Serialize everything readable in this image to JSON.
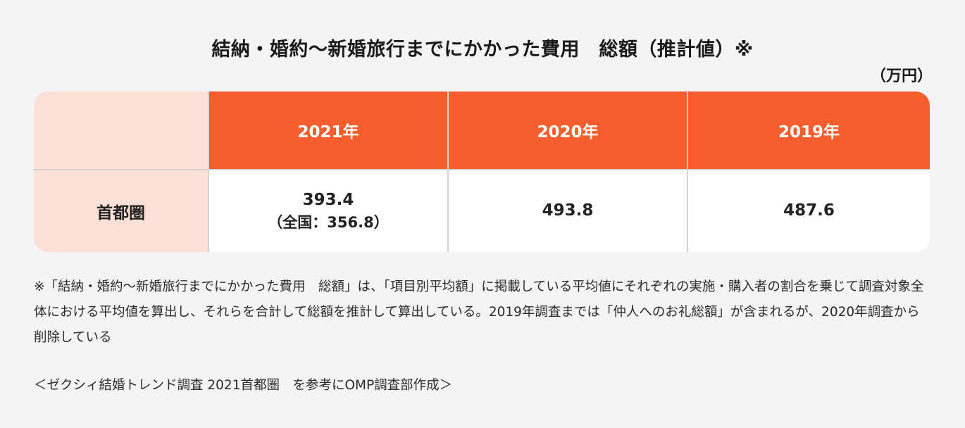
{
  "header": {
    "title": "結納・婚約〜新婚旅行までにかかった費用　総額（推計値）※",
    "unit": "（万円）"
  },
  "table": {
    "corner_label": "",
    "columns": [
      "2021年",
      "2020年",
      "2019年"
    ],
    "rows": [
      {
        "label": "首都圏",
        "values": [
          {
            "main": "393.4",
            "sub": "（全国：356.8）"
          },
          {
            "main": "493.8",
            "sub": ""
          },
          {
            "main": "487.6",
            "sub": ""
          }
        ]
      }
    ]
  },
  "colors": {
    "header_bg": "#f65f2d",
    "label_bg": "#fde0d8",
    "cell_bg": "#ffffff",
    "page_bg": "#f4f4f4",
    "grid_line": "#d4d4d4"
  },
  "footnote": {
    "note": "※「結納・婚約〜新婚旅行までにかかった費用　総額」は、「項目別平均額」に掲載している平均値にそれぞれの実施・購入者の割合を乗じて調査対象全体における平均値を算出し、それらを合計して総額を推計して算出している。2019年調査までは「仲人へのお礼総額」が含まれるが、2020年調査から削除している",
    "source": "＜ゼクシィ結婚トレンド調査 2021首都圏　を参考にOMP調査部作成＞"
  }
}
